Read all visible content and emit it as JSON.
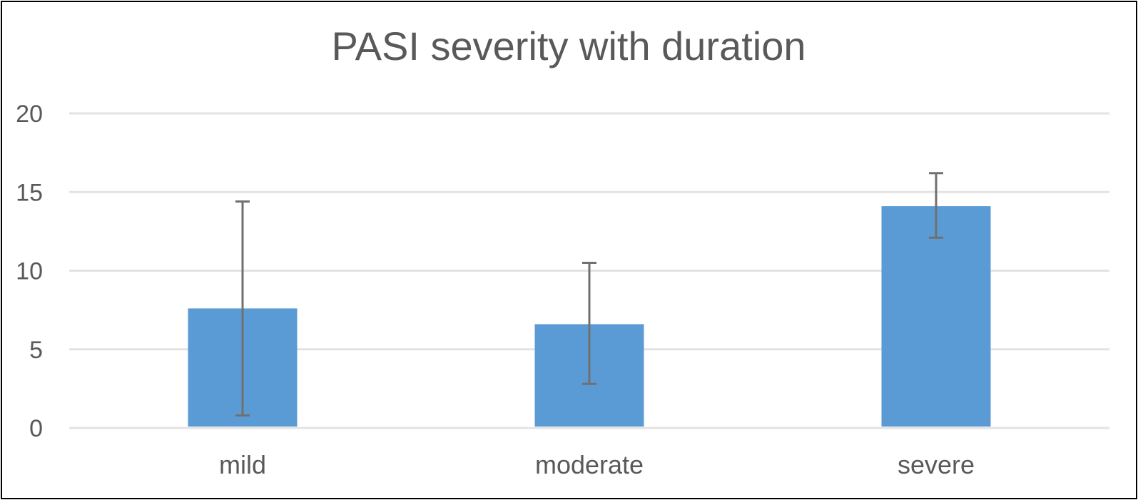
{
  "chart_data": {
    "type": "bar",
    "title": "PASI severity with duration",
    "xlabel": "",
    "ylabel": "",
    "categories": [
      "mild",
      "moderate",
      "severe"
    ],
    "series": [
      {
        "values": [
          7.6,
          6.6,
          14.1
        ],
        "error_low": [
          0.8,
          2.8,
          12.1
        ],
        "error_high": [
          14.4,
          10.5,
          16.2
        ]
      }
    ],
    "ylim": [
      0,
      20
    ],
    "yticks": [
      "0",
      "5",
      "10",
      "15",
      "20"
    ],
    "ytick_values": [
      0,
      5,
      10,
      15,
      20
    ],
    "grid": true,
    "legend": "none",
    "colors": {
      "bar": "#5B9BD5",
      "error_bar": "#707070",
      "gridline": "#E3E3E3",
      "text": "#595959"
    }
  }
}
